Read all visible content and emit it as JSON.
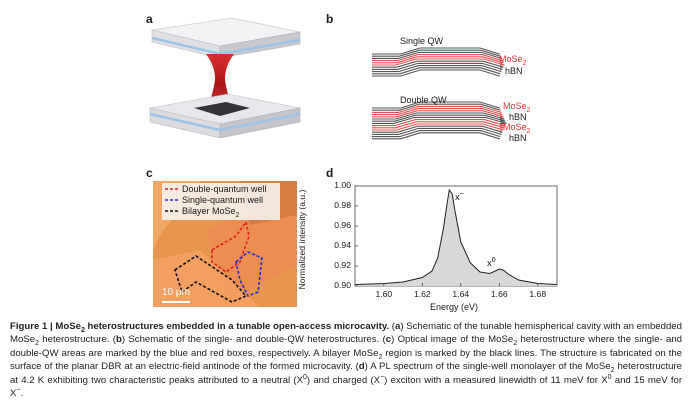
{
  "panels": {
    "a": "a",
    "b": "b",
    "c": "c",
    "d": "d"
  },
  "panel_b": {
    "single_title": "Single QW",
    "double_title": "Double QW",
    "mose2": "MoSe",
    "sub2": "2",
    "hbn": "hBN"
  },
  "panel_c": {
    "legend": [
      "Double-quantum well",
      "Single-quantum well",
      "Bilayer MoSe"
    ],
    "legend_sub": "2",
    "scale_bar": "10 μm"
  },
  "chart_data": {
    "type": "line",
    "title": "",
    "xlabel": "Energy (eV)",
    "ylabel": "Normalized intensity (a.u.)",
    "xlim": [
      1.585,
      1.69
    ],
    "ylim": [
      0.9,
      1.0
    ],
    "yticks": [
      0.9,
      0.92,
      0.94,
      0.96,
      0.98,
      1.0
    ],
    "xticks": [
      1.6,
      1.62,
      1.64,
      1.66,
      1.68
    ],
    "ytick_labels": [
      "0.90",
      "0.92",
      "0.94",
      "0.96",
      "0.98",
      "1.00"
    ],
    "xtick_labels": [
      "1.60",
      "1.62",
      "1.64",
      "1.66",
      "1.68"
    ],
    "series": [
      {
        "name": "PL spectrum",
        "x": [
          1.585,
          1.6,
          1.61,
          1.62,
          1.625,
          1.628,
          1.631,
          1.633,
          1.634,
          1.6355,
          1.637,
          1.64,
          1.645,
          1.65,
          1.655,
          1.658,
          1.66,
          1.662,
          1.665,
          1.67,
          1.68,
          1.69
        ],
        "y": [
          0.9015,
          0.9025,
          0.904,
          0.9085,
          0.915,
          0.928,
          0.958,
          0.984,
          0.996,
          0.992,
          0.975,
          0.944,
          0.923,
          0.914,
          0.9125,
          0.915,
          0.917,
          0.916,
          0.9115,
          0.906,
          0.9025,
          0.9015
        ]
      }
    ],
    "annotations": [
      {
        "text": "x",
        "sup": "−",
        "x": 1.6385,
        "y": 0.994
      },
      {
        "text": "x",
        "sup": "0",
        "x": 1.659,
        "y": 0.9205
      }
    ]
  },
  "caption": {
    "figure_label": "Figure 1 | MoSe",
    "figure_label_sub": "2",
    "figure_title": " heterostructures embedded in a tunable open-access microcavity.",
    "text_a1": " (",
    "a": "a",
    "text_a2": ") Schematic of the tunable hemispherical cavity with an embedded MoSe",
    "text_a3": " heterostructure. (",
    "b": "b",
    "text_b": ") Schematic of the single- and double-QW heterostructures. (",
    "c": "c",
    "text_c1": ") Optical image of the MoSe",
    "text_c2": " heterostructure where the single- and double-QW areas are marked by the blue and red boxes, respectively. A bilayer MoSe",
    "text_c3": " region is marked by the black lines. The structure is fabricated on the surface of the planar DBR at an electric-field antinode of the formed microcavity. (",
    "d": "d",
    "text_d1": ") A PL spectrum of the single-well monolayer of the MoSe",
    "text_d2": " heterostructure at 4.2 K exhibiting two characteristic peaks attributed to a neutral (X",
    "sup0": "0",
    "text_d3": ") and charged (X",
    "supm": "−",
    "text_d4": ") exciton with a measured linewidth of 11 meV for X",
    "text_d5": " and 15 meV for X",
    "text_d6": "."
  }
}
